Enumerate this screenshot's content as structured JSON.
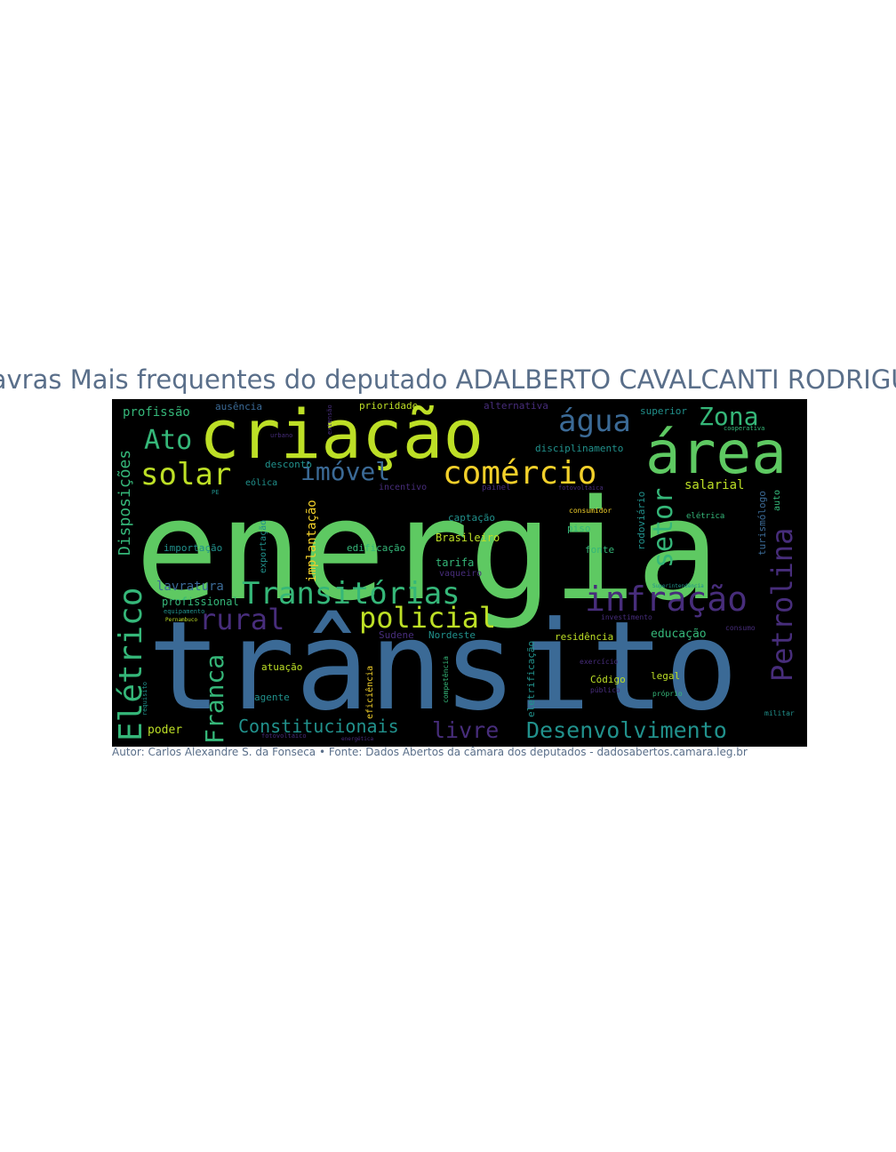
{
  "title": "Palavras Mais frequentes do deputado ADALBERTO CAVALCANTI RODRIGUES",
  "caption": "Autor: Carlos Alexandre S. da Fonseca • Fonte: Dados Abertos da câmara dos deputados - dadosabertos.camara.leg.br",
  "words": {
    "energia": "energia",
    "transito": "trânsito",
    "criacao": "criação",
    "area": "área",
    "comercio": "comércio",
    "infracao": "infração",
    "transitorias": "Transitórias",
    "eletrico": "Elétrico",
    "petrolina": "Petrolina",
    "agua": "água",
    "policial": "policial",
    "rural": "rural",
    "franca": "Franca",
    "desenvolvimento": "Desenvolvimento",
    "solar": "solar",
    "imovel": "imóvel",
    "setor": "setor",
    "zona": "Zona",
    "ato": "Ato",
    "disposicoes": "Disposições",
    "livre": "livre",
    "constitucionais": "Constitucionais",
    "profissao": "profissão",
    "ausencia": "ausência",
    "prioridade": "prioridade",
    "alternativa": "alternativa",
    "superior": "superior",
    "disciplinamento": "disciplinamento",
    "desconto": "desconto",
    "eolica": "eólica",
    "incentivo": "incentivo",
    "painel": "painel",
    "fotovoltaica": "fotovoltaica",
    "salarial": "salarial",
    "turismologo": "turismólogo",
    "auto": "auto",
    "consumidor": "consumidor",
    "eletrica": "elétrica",
    "captacao": "captação",
    "piso": "piso",
    "brasileiro": "Brasileiro",
    "importacao": "importação",
    "exportacao": "exportação",
    "implantacao": "implantação",
    "edificacao": "edificação",
    "fonte": "fonte",
    "tarifa": "tarifa",
    "vaqueiro": "vaqueiro",
    "rodoviario": "rodoviário",
    "lavratura": "lavratura",
    "profissional": "profissional",
    "equipamento": "equipamento",
    "pernambuco": "Pernambuco",
    "investimento": "investimento",
    "superintendencia": "Superintendência",
    "consumo": "consumo",
    "sudene": "Sudene",
    "nordeste": "Nordeste",
    "residencia": "residência",
    "educacao": "educação",
    "eletrificacao": "eletrificação",
    "atuacao": "atuação",
    "eficiencia": "eficiência",
    "competencia": "competência",
    "exercicio": "exercício",
    "codigo": "Código",
    "legal": "legal",
    "publico": "público",
    "proprio": "próprio",
    "agente": "agente",
    "requisito": "requisito",
    "poder": "poder",
    "fotovoltaico": "fotovoltaico",
    "energetica": "energética",
    "militar": "militar",
    "urbano": "urbano",
    "pe": "PE",
    "cooperativa": "cooperativa",
    "extensao": "extensão"
  },
  "colors": {
    "background": "#000000",
    "title": "#5a6f8a",
    "green": "#5ec962",
    "blue": "#3b6a96",
    "lime": "#bddf26",
    "purple": "#472d7b",
    "teal": "#21918c",
    "yellow": "#f2d02a",
    "mint": "#35b779"
  }
}
